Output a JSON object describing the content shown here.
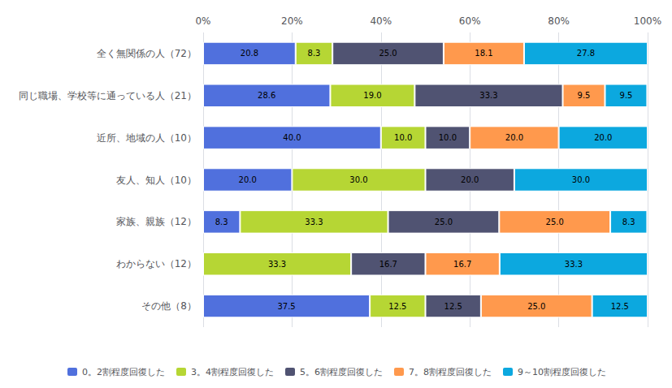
{
  "chart_data": {
    "type": "bar",
    "orientation": "horizontal",
    "stacked": true,
    "categories": [
      "全く無関係の人（72）",
      "同じ職場、学校等に通っている人（21）",
      "近所、地域の人（10）",
      "友人、知人（10）",
      "家族、親族（12）",
      "わからない（12）",
      "その他（8）"
    ],
    "series": [
      {
        "name": "0。2割程度回復した",
        "values": [
          20.8,
          28.6,
          40.0,
          20.0,
          8.3,
          0.0,
          37.5
        ],
        "value_labels": [
          "20.8",
          "28.6",
          "40.0",
          "20.0",
          "8.3",
          null,
          "37.5"
        ]
      },
      {
        "name": "3。4割程度回復した",
        "values": [
          8.3,
          19.0,
          10.0,
          30.0,
          33.3,
          33.3,
          12.5
        ],
        "value_labels": [
          "8.3",
          "19.0",
          "10.0",
          "30.0",
          "33.3",
          "33.3",
          "12.5"
        ]
      },
      {
        "name": "5。6割程度回復した",
        "values": [
          25.0,
          33.3,
          10.0,
          20.0,
          25.0,
          16.7,
          12.5
        ],
        "value_labels": [
          "25.0",
          "33.3",
          "10.0",
          "20.0",
          "25.0",
          "16.7",
          "12.5"
        ]
      },
      {
        "name": "7。8割程度回復した",
        "values": [
          18.1,
          9.5,
          20.0,
          0.0,
          25.0,
          16.7,
          25.0
        ],
        "value_labels": [
          "18.1",
          "9.5",
          "20.0",
          null,
          "25.0",
          "16.7",
          "25.0"
        ]
      },
      {
        "name": "9～10割程度回復した",
        "values": [
          27.8,
          9.5,
          20.0,
          30.0,
          8.3,
          33.3,
          12.5
        ],
        "value_labels": [
          "27.8",
          "9.5",
          "20.0",
          "30.0",
          "8.3",
          "33.3",
          "12.5"
        ]
      }
    ],
    "xlim": [
      0,
      100
    ],
    "xticks": [
      {
        "value": 0,
        "label": "0%"
      },
      {
        "value": 20,
        "label": "20%"
      },
      {
        "value": 40,
        "label": "40%"
      },
      {
        "value": 60,
        "label": "60%"
      },
      {
        "value": 80,
        "label": "80%"
      },
      {
        "value": 100,
        "label": "100%"
      }
    ],
    "grid": true,
    "legend": "bottom",
    "data_labels": true
  }
}
